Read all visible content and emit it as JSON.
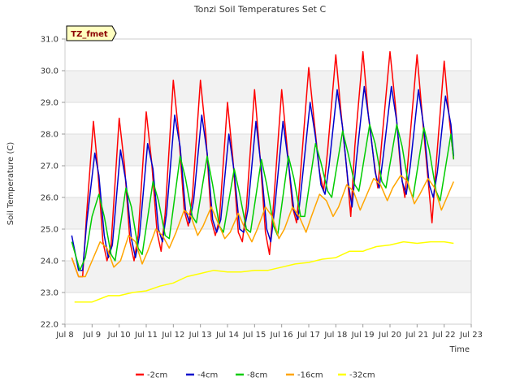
{
  "chart_data": {
    "type": "line",
    "title": "Tonzi Soil Temperatures Set C",
    "xlabel": "Time",
    "ylabel": "Soil Temperature (C)",
    "site_label": "TZ_fmet",
    "xlim": [
      8,
      23
    ],
    "ylim": [
      22.0,
      31.0
    ],
    "x_ticks": [
      8,
      9,
      10,
      11,
      12,
      13,
      14,
      15,
      16,
      17,
      18,
      19,
      20,
      21,
      22,
      23
    ],
    "x_tick_labels": [
      "Jul 8",
      "Jul 9",
      "Jul 10",
      "Jul 11",
      "Jul 12",
      "Jul 13",
      "Jul 14",
      "Jul 15",
      "Jul 16",
      "Jul 17",
      "Jul 18",
      "Jul 19",
      "Jul 20",
      "Jul 21",
      "Jul 22",
      "Jul 23"
    ],
    "y_ticks": [
      22.0,
      23.0,
      24.0,
      25.0,
      26.0,
      27.0,
      28.0,
      29.0,
      30.0,
      31.0
    ],
    "y_tick_labels": [
      "22.0",
      "23.0",
      "24.0",
      "25.0",
      "26.0",
      "27.0",
      "28.0",
      "29.0",
      "30.0",
      "31.0"
    ],
    "grid": true,
    "legend_position": "bottom",
    "series": [
      {
        "name": "-2cm",
        "color": "#ff0000",
        "x": [
          8.25,
          8.5,
          8.65,
          8.8,
          9.05,
          9.2,
          9.4,
          9.55,
          9.7,
          10.0,
          10.2,
          10.4,
          10.55,
          10.7,
          11.0,
          11.2,
          11.4,
          11.55,
          11.7,
          12.0,
          12.2,
          12.4,
          12.55,
          12.7,
          13.0,
          13.2,
          13.4,
          13.55,
          13.7,
          14.0,
          14.2,
          14.4,
          14.55,
          14.7,
          15.0,
          15.2,
          15.4,
          15.55,
          15.7,
          16.0,
          16.2,
          16.4,
          16.55,
          16.7,
          17.0,
          17.2,
          17.4,
          17.55,
          17.7,
          18.0,
          18.2,
          18.4,
          18.55,
          18.7,
          19.0,
          19.2,
          19.4,
          19.55,
          19.7,
          20.0,
          20.2,
          20.4,
          20.55,
          20.7,
          21.0,
          21.2,
          21.4,
          21.55,
          21.7,
          22.0,
          22.2,
          22.35
        ],
        "y": [
          24.1,
          23.5,
          23.5,
          25.5,
          28.4,
          27.0,
          24.6,
          24.0,
          24.5,
          28.5,
          27.0,
          24.6,
          24.0,
          24.8,
          28.7,
          27.1,
          24.9,
          24.3,
          25.5,
          29.7,
          28.0,
          25.6,
          25.1,
          26.0,
          29.7,
          28.0,
          25.3,
          24.8,
          25.3,
          29.0,
          27.2,
          24.9,
          24.6,
          25.7,
          29.4,
          27.3,
          24.9,
          24.2,
          25.8,
          29.4,
          27.6,
          25.7,
          25.2,
          26.8,
          30.1,
          28.4,
          26.8,
          26.2,
          27.5,
          30.5,
          28.6,
          26.9,
          25.4,
          27.6,
          30.6,
          28.6,
          27.2,
          26.3,
          27.8,
          30.6,
          28.9,
          26.8,
          26.0,
          27.5,
          30.5,
          28.5,
          26.6,
          25.2,
          27.0,
          30.3,
          28.4,
          27.2
        ]
      },
      {
        "name": "-4cm",
        "color": "#0000cc",
        "x": [
          8.25,
          8.5,
          8.65,
          8.8,
          9.1,
          9.25,
          9.45,
          9.6,
          9.75,
          10.05,
          10.25,
          10.45,
          10.6,
          10.75,
          11.05,
          11.25,
          11.45,
          11.6,
          11.75,
          12.05,
          12.25,
          12.45,
          12.6,
          12.75,
          13.05,
          13.25,
          13.45,
          13.6,
          13.75,
          14.05,
          14.25,
          14.45,
          14.6,
          14.75,
          15.05,
          15.25,
          15.45,
          15.6,
          15.75,
          16.05,
          16.25,
          16.45,
          16.6,
          16.75,
          17.05,
          17.25,
          17.45,
          17.6,
          17.75,
          18.05,
          18.25,
          18.45,
          18.6,
          18.75,
          19.05,
          19.25,
          19.45,
          19.6,
          19.75,
          20.05,
          20.25,
          20.45,
          20.6,
          20.75,
          21.05,
          21.25,
          21.45,
          21.6,
          21.75,
          22.05,
          22.25,
          22.35
        ],
        "y": [
          24.8,
          23.7,
          23.7,
          25.2,
          27.4,
          26.7,
          24.8,
          24.1,
          24.5,
          27.5,
          26.5,
          24.7,
          24.1,
          24.8,
          27.7,
          26.9,
          25.0,
          24.6,
          25.5,
          28.6,
          27.6,
          25.6,
          25.2,
          25.9,
          28.6,
          27.4,
          25.3,
          24.9,
          25.3,
          28.0,
          26.8,
          25.0,
          24.9,
          25.6,
          28.4,
          26.9,
          25.0,
          24.6,
          25.7,
          28.4,
          27.1,
          25.6,
          25.3,
          26.5,
          29.0,
          27.9,
          26.4,
          26.1,
          27.0,
          29.4,
          28.2,
          26.5,
          25.7,
          27.1,
          29.5,
          28.3,
          26.8,
          26.3,
          27.3,
          29.5,
          28.4,
          26.5,
          26.1,
          27.0,
          29.4,
          28.2,
          26.4,
          26.0,
          26.8,
          29.2,
          28.3,
          27.3
        ]
      },
      {
        "name": "-8cm",
        "color": "#00cc00",
        "x": [
          8.25,
          8.55,
          8.75,
          9.0,
          9.25,
          9.45,
          9.7,
          9.85,
          10.25,
          10.45,
          10.7,
          10.85,
          11.25,
          11.45,
          11.7,
          11.85,
          12.25,
          12.45,
          12.7,
          12.85,
          13.25,
          13.45,
          13.7,
          13.85,
          14.25,
          14.45,
          14.7,
          14.85,
          15.25,
          15.45,
          15.7,
          15.85,
          16.25,
          16.45,
          16.7,
          16.85,
          17.25,
          17.45,
          17.7,
          17.85,
          18.25,
          18.45,
          18.7,
          18.85,
          19.25,
          19.45,
          19.7,
          19.85,
          20.25,
          20.45,
          20.7,
          20.85,
          21.25,
          21.45,
          21.7,
          21.85,
          22.25,
          22.35
        ],
        "y": [
          24.6,
          23.7,
          24.1,
          25.4,
          26.1,
          25.4,
          24.2,
          24.0,
          26.3,
          25.7,
          24.4,
          24.2,
          26.5,
          25.9,
          24.8,
          24.7,
          27.3,
          26.6,
          25.4,
          25.2,
          27.3,
          26.4,
          25.1,
          24.9,
          26.9,
          26.1,
          25.0,
          24.9,
          27.2,
          26.4,
          25.1,
          24.8,
          27.3,
          26.6,
          25.4,
          25.4,
          27.7,
          27.1,
          26.2,
          26.0,
          28.1,
          27.4,
          26.4,
          26.2,
          28.3,
          27.7,
          26.5,
          26.3,
          28.3,
          27.6,
          26.3,
          26.0,
          28.2,
          27.5,
          26.2,
          25.9,
          28.0,
          27.2
        ]
      },
      {
        "name": "-16cm",
        "color": "#ffa500",
        "x": [
          8.25,
          8.5,
          8.75,
          9.0,
          9.3,
          9.55,
          9.8,
          10.05,
          10.35,
          10.6,
          10.85,
          11.05,
          11.35,
          11.6,
          11.85,
          12.1,
          12.4,
          12.65,
          12.9,
          13.1,
          13.4,
          13.65,
          13.9,
          14.1,
          14.4,
          14.65,
          14.9,
          15.1,
          15.4,
          15.65,
          15.9,
          16.1,
          16.4,
          16.65,
          16.9,
          17.1,
          17.4,
          17.65,
          17.9,
          18.1,
          18.4,
          18.65,
          18.9,
          19.1,
          19.4,
          19.65,
          19.9,
          20.1,
          20.4,
          20.65,
          20.9,
          21.1,
          21.4,
          21.65,
          21.9,
          22.1,
          22.35
        ],
        "y": [
          24.1,
          23.5,
          23.5,
          24.0,
          24.6,
          24.4,
          23.8,
          24.0,
          24.8,
          24.6,
          23.9,
          24.3,
          25.0,
          24.8,
          24.4,
          24.9,
          25.6,
          25.4,
          24.8,
          25.1,
          25.7,
          25.2,
          24.7,
          24.9,
          25.5,
          25.0,
          24.6,
          25.0,
          25.7,
          25.4,
          24.7,
          25.0,
          25.7,
          25.4,
          24.9,
          25.4,
          26.1,
          25.9,
          25.4,
          25.7,
          26.4,
          26.2,
          25.6,
          26.0,
          26.6,
          26.4,
          25.9,
          26.3,
          26.7,
          26.5,
          25.8,
          26.1,
          26.6,
          26.3,
          25.6,
          26.0,
          26.5
        ]
      },
      {
        "name": "-32cm",
        "color": "#ffff00",
        "x": [
          8.35,
          8.7,
          9.0,
          9.3,
          9.6,
          10.0,
          10.5,
          11.0,
          11.5,
          12.0,
          12.5,
          13.0,
          13.5,
          14.0,
          14.5,
          15.0,
          15.5,
          16.0,
          16.5,
          17.0,
          17.5,
          18.0,
          18.5,
          19.0,
          19.15,
          19.5,
          20.0,
          20.5,
          21.0,
          21.5,
          22.0,
          22.35
        ],
        "y": [
          22.7,
          22.7,
          22.7,
          22.8,
          22.9,
          22.9,
          23.0,
          23.05,
          23.2,
          23.3,
          23.5,
          23.6,
          23.7,
          23.65,
          23.65,
          23.7,
          23.7,
          23.8,
          23.9,
          23.95,
          24.05,
          24.1,
          24.3,
          24.3,
          24.35,
          24.45,
          24.5,
          24.6,
          24.55,
          24.6,
          24.6,
          24.55
        ]
      }
    ]
  }
}
